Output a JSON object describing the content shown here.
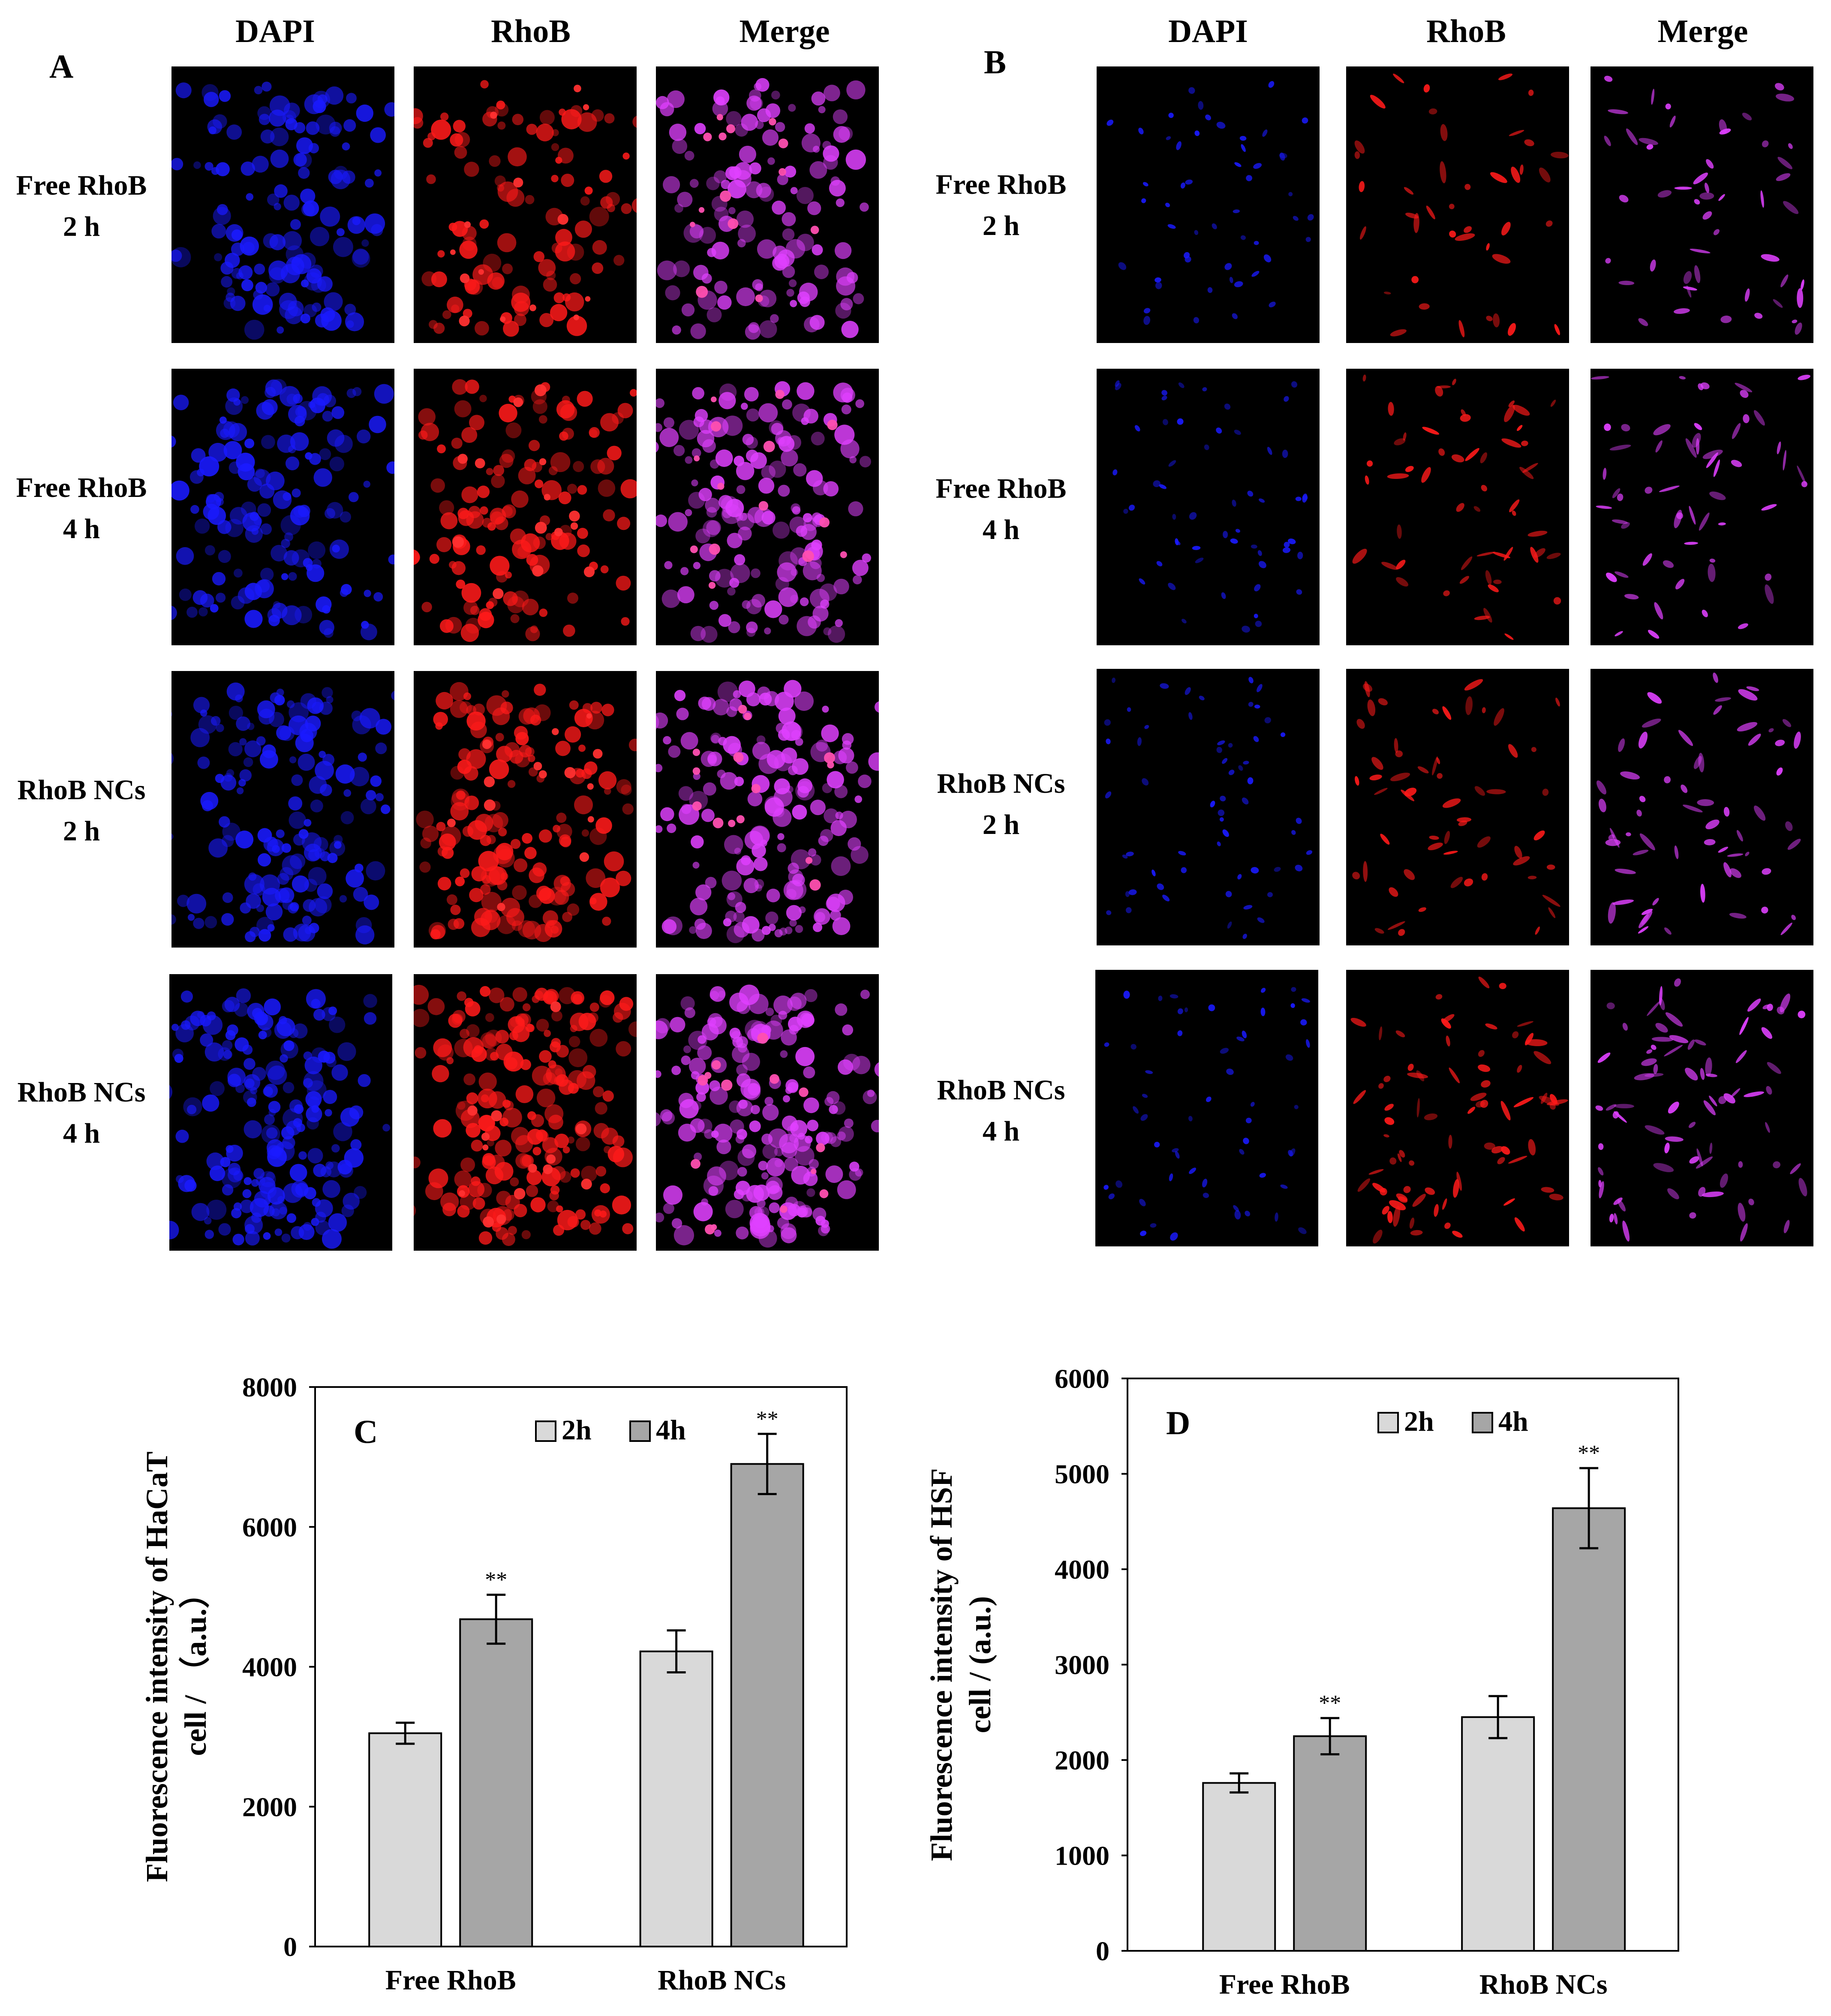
{
  "panelA": {
    "letter": "A",
    "columns": [
      "DAPI",
      "RhoB",
      "Merge"
    ],
    "rows": [
      {
        "line1": "Free RhoB",
        "line2": "2 h"
      },
      {
        "line1": "Free RhoB",
        "line2": "4 h"
      },
      {
        "line1": "RhoB NCs",
        "line2": "2 h"
      },
      {
        "line1": "RhoB NCs",
        "line2": "4 h"
      }
    ]
  },
  "panelB": {
    "letter": "B",
    "columns": [
      "DAPI",
      "RhoB",
      "Merge"
    ],
    "rows": [
      {
        "line1": "Free RhoB",
        "line2": "2 h"
      },
      {
        "line1": "Free RhoB",
        "line2": "4 h"
      },
      {
        "line1": "RhoB NCs",
        "line2": "2 h"
      },
      {
        "line1": "RhoB NCs",
        "line2": "4 h"
      }
    ]
  },
  "colors": {
    "dapi": "#1a1aff",
    "rhob": "#ff1a1a",
    "merge": "#e040ff",
    "bar_2h": "#d9d9d9",
    "bar_4h": "#a6a6a6"
  },
  "chart_data": [
    {
      "type": "bar",
      "panel_letter": "C",
      "categories": [
        "Free RhoB",
        "RhoB NCs"
      ],
      "series": [
        {
          "name": "2h",
          "values": [
            3050,
            4220
          ],
          "errors": [
            150,
            300
          ],
          "significance": [
            "",
            ""
          ]
        },
        {
          "name": "4h",
          "values": [
            4680,
            6900
          ],
          "errors": [
            350,
            430
          ],
          "significance": [
            "**",
            "**"
          ]
        }
      ],
      "ylabel_line1": "Fluorescence intensity of HaCaT",
      "ylabel_line2": "cell / （a.u.）",
      "ylim": [
        0,
        8000
      ],
      "yticks": [
        0,
        2000,
        4000,
        6000,
        8000
      ],
      "legend_position": "top-right"
    },
    {
      "type": "bar",
      "panel_letter": "D",
      "categories": [
        "Free RhoB",
        "RhoB NCs"
      ],
      "series": [
        {
          "name": "2h",
          "values": [
            1760,
            2450
          ],
          "errors": [
            100,
            220
          ],
          "significance": [
            "",
            ""
          ]
        },
        {
          "name": "4h",
          "values": [
            2250,
            4640
          ],
          "errors": [
            190,
            420
          ],
          "significance": [
            "**",
            "**"
          ]
        }
      ],
      "ylabel_line1": "Fluorescence intensity of HSF",
      "ylabel_line2": "cell / (a.u.)",
      "ylim": [
        0,
        6000
      ],
      "yticks": [
        0,
        1000,
        2000,
        3000,
        4000,
        5000,
        6000
      ],
      "legend_position": "top-right"
    }
  ]
}
